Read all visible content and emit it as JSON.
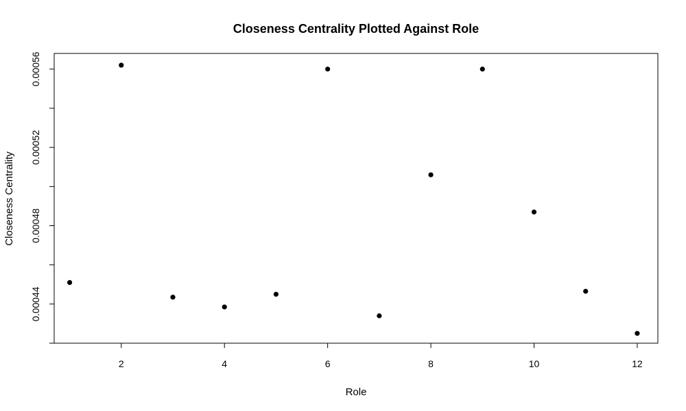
{
  "chart_data": {
    "type": "scatter",
    "title": "Closeness Centrality Plotted Against Role",
    "xlabel": "Role",
    "ylabel": "Closeness Centrality",
    "xlim": [
      0.7,
      12.4
    ],
    "ylim": [
      0.00042,
      0.000568
    ],
    "x_ticks": [
      2,
      4,
      6,
      8,
      10,
      12
    ],
    "y_ticks": [
      0.00044,
      0.00048,
      0.00052,
      0.00056
    ],
    "y_tick_labels": [
      "0.00044",
      "0.00048",
      "0.00052",
      "0.00056"
    ],
    "grid": false,
    "marker_color": "#000000",
    "points": [
      {
        "x": 1,
        "y": 0.000451
      },
      {
        "x": 2,
        "y": 0.000562
      },
      {
        "x": 3,
        "y": 0.0004435
      },
      {
        "x": 4,
        "y": 0.0004385
      },
      {
        "x": 5,
        "y": 0.000445
      },
      {
        "x": 6,
        "y": 0.00056
      },
      {
        "x": 7,
        "y": 0.000434
      },
      {
        "x": 8,
        "y": 0.000506
      },
      {
        "x": 9,
        "y": 0.00056
      },
      {
        "x": 10,
        "y": 0.000487
      },
      {
        "x": 11,
        "y": 0.0004465
      },
      {
        "x": 12,
        "y": 0.000425
      }
    ]
  }
}
